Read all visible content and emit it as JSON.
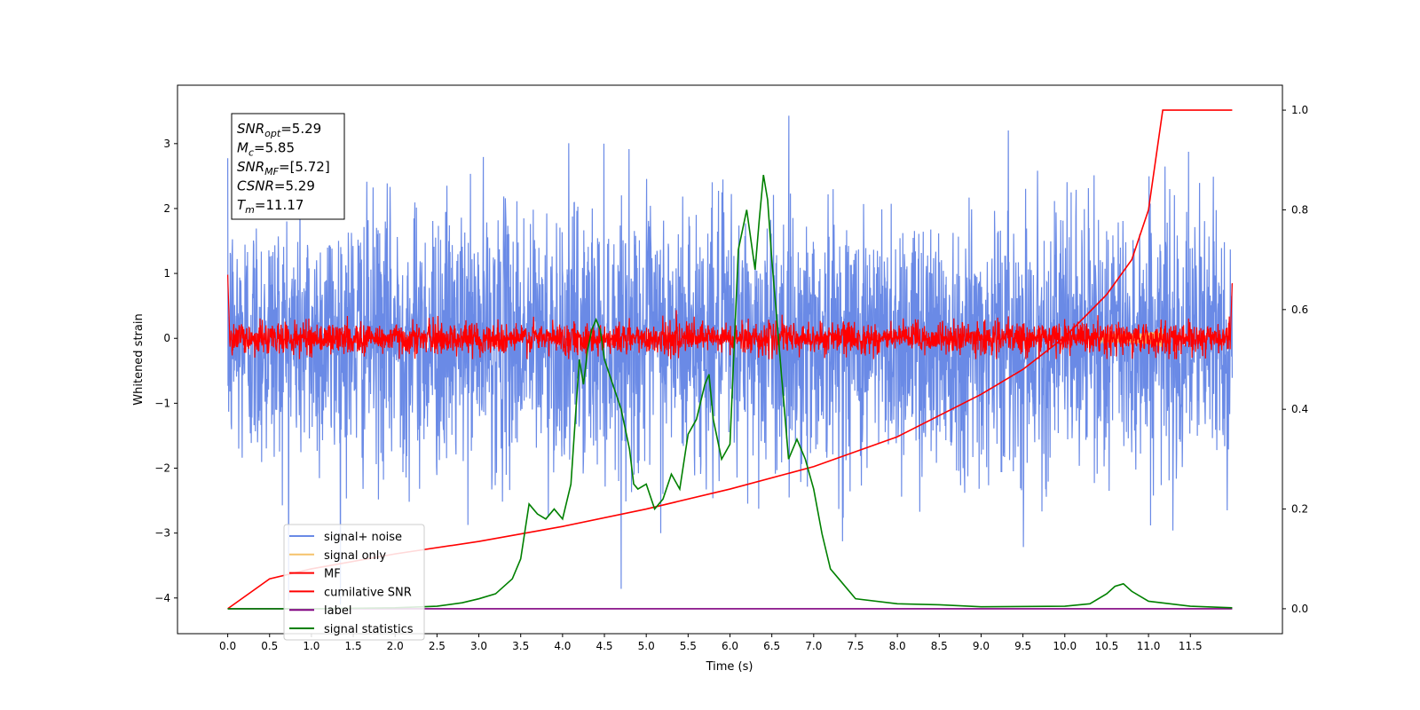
{
  "chart_data": {
    "type": "line",
    "title": "",
    "xlabel": "Time (s)",
    "ylabel": "Whitened strain",
    "xlim": [
      -0.6,
      12.6
    ],
    "ylim": [
      -4.55,
      3.9
    ],
    "y2lim": [
      -0.05,
      1.05
    ],
    "grid": false,
    "legend_position": "lower-left",
    "x_ticks": [
      "0.0",
      "0.5",
      "1.0",
      "1.5",
      "2.0",
      "2.5",
      "3.0",
      "3.5",
      "4.0",
      "4.5",
      "5.0",
      "5.5",
      "6.0",
      "6.5",
      "7.0",
      "7.5",
      "8.0",
      "8.5",
      "9.0",
      "9.5",
      "10.0",
      "10.5",
      "11.0",
      "11.5"
    ],
    "y_ticks": [
      "-4",
      "-3",
      "-2",
      "-1",
      "0",
      "1",
      "2",
      "3"
    ],
    "y2_ticks": [
      "0.0",
      "0.2",
      "0.4",
      "0.6",
      "0.8",
      "1.0"
    ],
    "annotation": [
      {
        "sym": "SNR",
        "sub": "opt",
        "val": "=5.29"
      },
      {
        "sym": "M",
        "sub": "c",
        "val": "=5.85"
      },
      {
        "sym": "SNR",
        "sub": "MF",
        "val": "=[5.72]"
      },
      {
        "sym": "CSNR",
        "sub": "",
        "val": "=5.29"
      },
      {
        "sym": "T",
        "sub": "m",
        "val": "=11.17"
      }
    ],
    "series": [
      {
        "name": "signal+ noise",
        "color": "#6a8ae6",
        "axis": "left",
        "noise_std": 1.0,
        "x_range": [
          0.0,
          12.0
        ]
      },
      {
        "name": "signal only",
        "color": "#f5c26b",
        "axis": "left",
        "chirp_end": 11.17
      },
      {
        "name": "MF",
        "color": "#ff0000",
        "axis": "left",
        "noise_std": 0.12
      },
      {
        "name": "cumilative SNR",
        "color": "#ff0000",
        "axis": "right",
        "x": [
          0.0,
          0.5,
          1.0,
          2.0,
          3.0,
          4.0,
          5.0,
          6.0,
          7.0,
          8.0,
          9.0,
          9.5,
          10.0,
          10.5,
          10.8,
          11.0,
          11.17,
          11.5,
          12.0
        ],
        "y": [
          0.0,
          0.06,
          0.08,
          0.11,
          0.135,
          0.165,
          0.2,
          0.24,
          0.285,
          0.345,
          0.43,
          0.48,
          0.545,
          0.63,
          0.7,
          0.8,
          1.0,
          1.0,
          1.0
        ]
      },
      {
        "name": "label",
        "color": "#800080",
        "axis": "right",
        "x": [
          0.0,
          12.0
        ],
        "y": [
          0.0,
          0.0
        ]
      },
      {
        "name": "signal statistics",
        "color": "#008000",
        "axis": "right",
        "x": [
          0.0,
          1.0,
          2.0,
          2.5,
          2.8,
          3.0,
          3.2,
          3.4,
          3.5,
          3.6,
          3.65,
          3.7,
          3.8,
          3.9,
          4.0,
          4.1,
          4.2,
          4.25,
          4.3,
          4.35,
          4.4,
          4.45,
          4.5,
          4.6,
          4.7,
          4.8,
          4.85,
          4.9,
          5.0,
          5.1,
          5.2,
          5.3,
          5.4,
          5.5,
          5.6,
          5.7,
          5.75,
          5.8,
          5.9,
          6.0,
          6.1,
          6.2,
          6.3,
          6.35,
          6.4,
          6.45,
          6.5,
          6.6,
          6.7,
          6.8,
          6.9,
          7.0,
          7.1,
          7.2,
          7.3,
          7.5,
          8.0,
          8.5,
          9.0,
          10.0,
          10.3,
          10.5,
          10.6,
          10.7,
          10.8,
          11.0,
          11.5,
          12.0
        ],
        "y": [
          0.0,
          0.0,
          0.002,
          0.005,
          0.012,
          0.02,
          0.03,
          0.06,
          0.1,
          0.21,
          0.2,
          0.19,
          0.18,
          0.2,
          0.18,
          0.25,
          0.5,
          0.45,
          0.52,
          0.56,
          0.58,
          0.56,
          0.5,
          0.45,
          0.4,
          0.32,
          0.25,
          0.24,
          0.25,
          0.2,
          0.22,
          0.27,
          0.24,
          0.35,
          0.38,
          0.45,
          0.47,
          0.38,
          0.3,
          0.33,
          0.72,
          0.8,
          0.68,
          0.78,
          0.87,
          0.82,
          0.7,
          0.5,
          0.3,
          0.34,
          0.3,
          0.24,
          0.15,
          0.08,
          0.06,
          0.02,
          0.01,
          0.008,
          0.004,
          0.005,
          0.01,
          0.03,
          0.045,
          0.05,
          0.035,
          0.015,
          0.005,
          0.002
        ]
      }
    ]
  }
}
